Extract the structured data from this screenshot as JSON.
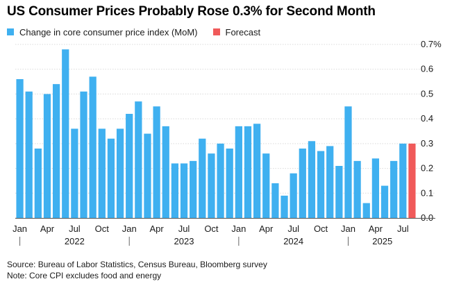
{
  "title": "US Consumer Prices Probably Rose 0.3% for Second Month",
  "legend": [
    {
      "label": "Change in core consumer price index (MoM)",
      "color": "#3fb0f0"
    },
    {
      "label": "Forecast",
      "color": "#f05a5a"
    }
  ],
  "source": "Source: Bureau of Labor Statistics, Census Bureau, Bloomberg survey",
  "note": "Note: Core CPI excludes food and energy",
  "chart_data": {
    "type": "bar",
    "ylim": [
      0,
      0.7
    ],
    "yticks": [
      {
        "value": 0.0,
        "label": "0.0"
      },
      {
        "value": 0.1,
        "label": "0.1"
      },
      {
        "value": 0.2,
        "label": "0.2"
      },
      {
        "value": 0.3,
        "label": "0.3"
      },
      {
        "value": 0.4,
        "label": "0.4"
      },
      {
        "value": 0.5,
        "label": "0.5"
      },
      {
        "value": 0.6,
        "label": "0.6"
      },
      {
        "value": 0.7,
        "label": "0.7%"
      }
    ],
    "grid": true,
    "y_axis_side": "right",
    "categories": [
      "2022-01",
      "2022-02",
      "2022-03",
      "2022-04",
      "2022-05",
      "2022-06",
      "2022-07",
      "2022-08",
      "2022-09",
      "2022-10",
      "2022-11",
      "2022-12",
      "2023-01",
      "2023-02",
      "2023-03",
      "2023-04",
      "2023-05",
      "2023-06",
      "2023-07",
      "2023-08",
      "2023-09",
      "2023-10",
      "2023-11",
      "2023-12",
      "2024-01",
      "2024-02",
      "2024-03",
      "2024-04",
      "2024-05",
      "2024-06",
      "2024-07",
      "2024-08",
      "2024-09",
      "2024-10",
      "2024-11",
      "2024-12",
      "2025-01",
      "2025-02",
      "2025-03",
      "2025-04",
      "2025-05",
      "2025-06",
      "2025-07",
      "2025-08"
    ],
    "series": [
      {
        "name": "Change in core consumer price index (MoM)",
        "color": "#3fb0f0",
        "values": [
          0.56,
          0.51,
          0.28,
          0.5,
          0.54,
          0.68,
          0.36,
          0.51,
          0.57,
          0.36,
          0.32,
          0.36,
          0.42,
          0.47,
          0.34,
          0.45,
          0.37,
          0.22,
          0.22,
          0.23,
          0.32,
          0.26,
          0.3,
          0.28,
          0.37,
          0.37,
          0.38,
          0.26,
          0.14,
          0.09,
          0.18,
          0.28,
          0.31,
          0.27,
          0.29,
          0.21,
          0.45,
          0.23,
          0.06,
          0.24,
          0.13,
          0.23,
          0.3,
          null
        ]
      },
      {
        "name": "Forecast",
        "color": "#f05a5a",
        "values": [
          null,
          null,
          null,
          null,
          null,
          null,
          null,
          null,
          null,
          null,
          null,
          null,
          null,
          null,
          null,
          null,
          null,
          null,
          null,
          null,
          null,
          null,
          null,
          null,
          null,
          null,
          null,
          null,
          null,
          null,
          null,
          null,
          null,
          null,
          null,
          null,
          null,
          null,
          null,
          null,
          null,
          null,
          null,
          0.3
        ]
      }
    ],
    "xtick_labels": [
      {
        "index": 0,
        "label": "Jan"
      },
      {
        "index": 3,
        "label": "Apr"
      },
      {
        "index": 6,
        "label": "Jul"
      },
      {
        "index": 9,
        "label": "Oct"
      },
      {
        "index": 12,
        "label": "Jan"
      },
      {
        "index": 15,
        "label": "Apr"
      },
      {
        "index": 18,
        "label": "Jul"
      },
      {
        "index": 21,
        "label": "Oct"
      },
      {
        "index": 24,
        "label": "Jan"
      },
      {
        "index": 27,
        "label": "Apr"
      },
      {
        "index": 30,
        "label": "Jul"
      },
      {
        "index": 33,
        "label": "Oct"
      },
      {
        "index": 36,
        "label": "Jan"
      },
      {
        "index": 39,
        "label": "Apr"
      },
      {
        "index": 42,
        "label": "Jul"
      }
    ],
    "years": [
      {
        "label": "2022",
        "start_index": 0,
        "end_index": 11
      },
      {
        "label": "2023",
        "start_index": 12,
        "end_index": 23
      },
      {
        "label": "2024",
        "start_index": 24,
        "end_index": 35
      },
      {
        "label": "2025",
        "start_index": 36,
        "end_index": 43
      }
    ]
  }
}
